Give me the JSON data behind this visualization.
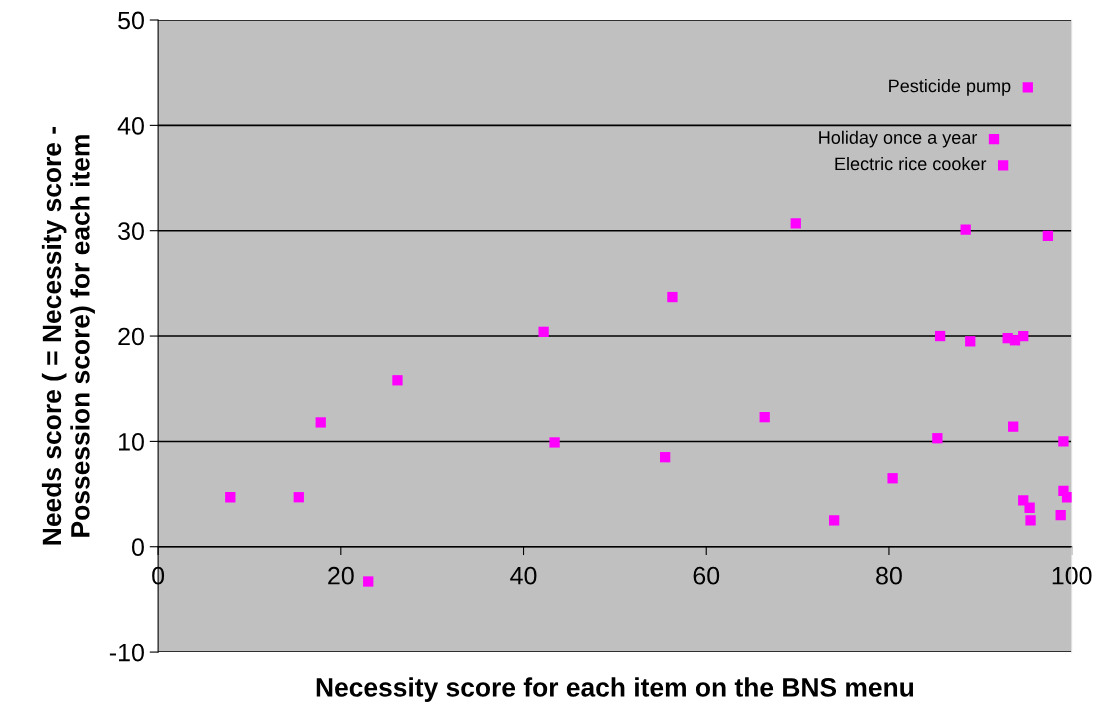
{
  "chart_data": {
    "type": "scatter",
    "xlabel": "Necessity score for each item on the BNS menu",
    "ylabel": "Needs score ( = Necessity score -\nPossession score) for each item",
    "xlim": [
      0,
      100
    ],
    "xticks": [
      0,
      20,
      40,
      60,
      80,
      100
    ],
    "ylim": [
      -10,
      50
    ],
    "yticks": [
      -10,
      0,
      10,
      20,
      30,
      40,
      50
    ],
    "grid": "y",
    "marker": "square",
    "series": [
      {
        "color": "#ff00ff",
        "x": [
          7.9,
          15.4,
          17.8,
          23.0,
          26.2,
          42.2,
          43.4,
          55.5,
          56.3,
          66.4,
          69.8,
          74.0,
          80.4,
          85.3,
          85.6,
          88.4,
          88.9,
          91.5,
          92.5,
          93.0,
          93.6,
          93.8,
          94.7,
          94.7,
          95.2,
          95.4,
          95.5,
          97.4,
          98.8,
          99.1,
          99.1,
          99.5
        ],
        "values": [
          4.7,
          4.7,
          11.8,
          -3.3,
          15.8,
          20.4,
          9.9,
          8.5,
          23.7,
          12.3,
          30.7,
          2.5,
          6.5,
          10.3,
          20.0,
          30.1,
          19.5,
          38.7,
          36.2,
          19.8,
          11.4,
          19.6,
          20.0,
          4.4,
          43.6,
          3.7,
          2.5,
          29.5,
          3.0,
          10.0,
          5.3,
          4.7
        ]
      }
    ],
    "annotations": [
      {
        "text": "Pesticide pump",
        "x": 95.2,
        "y": 43.6
      },
      {
        "text": "Holiday once a year",
        "x": 91.5,
        "y": 38.7
      },
      {
        "text": "Electric rice cooker",
        "x": 92.5,
        "y": 36.2
      }
    ]
  }
}
